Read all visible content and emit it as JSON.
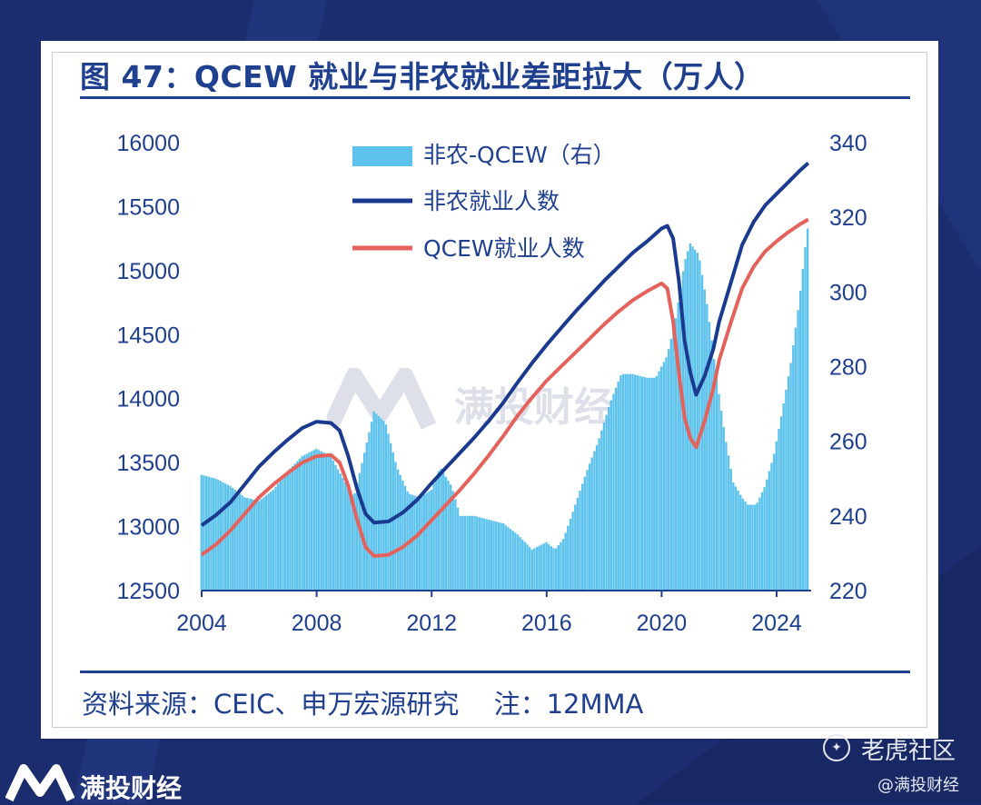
{
  "title": "图 47：QCEW 就业与非农就业差距拉大（万人）",
  "source_note": "资料来源：CEIC、申万宏源研究　 注：12MMA",
  "watermark_text": "满投财经",
  "footer": {
    "brand": "满投财经",
    "community": "老虎社区",
    "handle": "@满投财经"
  },
  "colors": {
    "bars": "#5ec3ec",
    "nonfarm_line": "#1a3a8f",
    "qcew_line": "#e4625b",
    "axis_text": "#1f3f8f",
    "background": "#1b2d6e"
  },
  "chart_data": {
    "type": "bar+line",
    "x_ticks": [
      "2004",
      "2008",
      "2012",
      "2016",
      "2020",
      "2024"
    ],
    "left_axis": {
      "ylim": [
        12500,
        16000
      ],
      "ticks": [
        12500,
        13000,
        13500,
        14000,
        14500,
        15000,
        15500,
        16000
      ]
    },
    "right_axis": {
      "ylim": [
        220,
        340
      ],
      "ticks": [
        220,
        240,
        260,
        280,
        300,
        320,
        340
      ]
    },
    "legend": [
      "非农-QCEW（右）",
      "非农就业人数",
      "QCEW就业人数"
    ],
    "legend_position": "top-left",
    "grid": false,
    "series": [
      {
        "name": "非农-QCEW（右）",
        "type": "bar",
        "axis": "right",
        "points": [
          [
            2004.0,
            251
          ],
          [
            2004.5,
            250
          ],
          [
            2005.0,
            248
          ],
          [
            2005.5,
            245
          ],
          [
            2006.0,
            244
          ],
          [
            2006.5,
            247
          ],
          [
            2007.0,
            252
          ],
          [
            2007.5,
            256
          ],
          [
            2008.0,
            258
          ],
          [
            2008.5,
            256
          ],
          [
            2009.0,
            249
          ],
          [
            2009.3,
            245
          ],
          [
            2009.7,
            258
          ],
          [
            2010.0,
            268
          ],
          [
            2010.4,
            265
          ],
          [
            2010.8,
            253
          ],
          [
            2011.2,
            246
          ],
          [
            2011.6,
            245
          ],
          [
            2012.0,
            247
          ],
          [
            2012.3,
            253
          ],
          [
            2012.7,
            248
          ],
          [
            2013.0,
            240
          ],
          [
            2013.5,
            240
          ],
          [
            2014.0,
            239
          ],
          [
            2014.5,
            238
          ],
          [
            2015.0,
            235
          ],
          [
            2015.5,
            231
          ],
          [
            2016.0,
            233
          ],
          [
            2016.3,
            231
          ],
          [
            2016.6,
            234
          ],
          [
            2017.0,
            243
          ],
          [
            2017.4,
            252
          ],
          [
            2017.8,
            260
          ],
          [
            2018.2,
            270
          ],
          [
            2018.6,
            278
          ],
          [
            2019.0,
            278
          ],
          [
            2019.5,
            277
          ],
          [
            2019.8,
            277
          ],
          [
            2020.2,
            283
          ],
          [
            2020.5,
            293
          ],
          [
            2020.8,
            308
          ],
          [
            2021.0,
            313
          ],
          [
            2021.3,
            310
          ],
          [
            2021.6,
            296
          ],
          [
            2021.9,
            278
          ],
          [
            2022.2,
            262
          ],
          [
            2022.5,
            249
          ],
          [
            2022.8,
            245
          ],
          [
            2023.0,
            243
          ],
          [
            2023.3,
            243
          ],
          [
            2023.6,
            248
          ],
          [
            2023.9,
            256
          ],
          [
            2024.2,
            268
          ],
          [
            2024.5,
            281
          ],
          [
            2024.8,
            298
          ],
          [
            2025.0,
            312
          ],
          [
            2025.1,
            318
          ]
        ]
      },
      {
        "name": "非农就业人数",
        "type": "line",
        "axis": "left",
        "points": [
          [
            2004.0,
            13010
          ],
          [
            2004.5,
            13090
          ],
          [
            2005.0,
            13190
          ],
          [
            2005.5,
            13330
          ],
          [
            2006.0,
            13470
          ],
          [
            2006.5,
            13580
          ],
          [
            2007.0,
            13680
          ],
          [
            2007.5,
            13770
          ],
          [
            2008.0,
            13820
          ],
          [
            2008.5,
            13810
          ],
          [
            2008.8,
            13750
          ],
          [
            2009.1,
            13550
          ],
          [
            2009.4,
            13300
          ],
          [
            2009.7,
            13100
          ],
          [
            2010.0,
            13030
          ],
          [
            2010.5,
            13040
          ],
          [
            2011.0,
            13110
          ],
          [
            2011.5,
            13210
          ],
          [
            2012.0,
            13340
          ],
          [
            2012.5,
            13460
          ],
          [
            2013.0,
            13580
          ],
          [
            2013.5,
            13700
          ],
          [
            2014.0,
            13830
          ],
          [
            2014.5,
            13970
          ],
          [
            2015.0,
            14130
          ],
          [
            2015.5,
            14280
          ],
          [
            2016.0,
            14420
          ],
          [
            2016.5,
            14550
          ],
          [
            2017.0,
            14680
          ],
          [
            2017.5,
            14800
          ],
          [
            2018.0,
            14920
          ],
          [
            2018.5,
            15030
          ],
          [
            2019.0,
            15140
          ],
          [
            2019.5,
            15230
          ],
          [
            2020.0,
            15330
          ],
          [
            2020.2,
            15350
          ],
          [
            2020.4,
            15250
          ],
          [
            2020.6,
            14920
          ],
          [
            2020.8,
            14450
          ],
          [
            2021.0,
            14200
          ],
          [
            2021.2,
            14030
          ],
          [
            2021.5,
            14180
          ],
          [
            2021.8,
            14390
          ],
          [
            2022.0,
            14600
          ],
          [
            2022.4,
            14900
          ],
          [
            2022.8,
            15200
          ],
          [
            2023.2,
            15380
          ],
          [
            2023.6,
            15510
          ],
          [
            2024.0,
            15600
          ],
          [
            2024.4,
            15690
          ],
          [
            2024.8,
            15780
          ],
          [
            2025.1,
            15840
          ]
        ]
      },
      {
        "name": "QCEW就业人数",
        "type": "line",
        "axis": "left",
        "points": [
          [
            2004.0,
            12780
          ],
          [
            2004.5,
            12860
          ],
          [
            2005.0,
            12970
          ],
          [
            2005.5,
            13100
          ],
          [
            2006.0,
            13230
          ],
          [
            2006.5,
            13330
          ],
          [
            2007.0,
            13420
          ],
          [
            2007.5,
            13500
          ],
          [
            2008.0,
            13550
          ],
          [
            2008.5,
            13560
          ],
          [
            2008.8,
            13500
          ],
          [
            2009.1,
            13320
          ],
          [
            2009.4,
            13060
          ],
          [
            2009.7,
            12840
          ],
          [
            2010.0,
            12770
          ],
          [
            2010.5,
            12780
          ],
          [
            2011.0,
            12840
          ],
          [
            2011.5,
            12930
          ],
          [
            2012.0,
            13050
          ],
          [
            2012.5,
            13170
          ],
          [
            2013.0,
            13290
          ],
          [
            2013.5,
            13420
          ],
          [
            2014.0,
            13560
          ],
          [
            2014.5,
            13710
          ],
          [
            2015.0,
            13870
          ],
          [
            2015.5,
            14010
          ],
          [
            2016.0,
            14140
          ],
          [
            2016.5,
            14250
          ],
          [
            2017.0,
            14360
          ],
          [
            2017.5,
            14470
          ],
          [
            2018.0,
            14580
          ],
          [
            2018.5,
            14680
          ],
          [
            2019.0,
            14770
          ],
          [
            2019.5,
            14840
          ],
          [
            2020.0,
            14900
          ],
          [
            2020.2,
            14860
          ],
          [
            2020.4,
            14600
          ],
          [
            2020.6,
            14200
          ],
          [
            2020.8,
            13850
          ],
          [
            2021.0,
            13690
          ],
          [
            2021.2,
            13620
          ],
          [
            2021.5,
            13830
          ],
          [
            2021.8,
            14080
          ],
          [
            2022.0,
            14300
          ],
          [
            2022.4,
            14590
          ],
          [
            2022.8,
            14860
          ],
          [
            2023.2,
            15030
          ],
          [
            2023.6,
            15150
          ],
          [
            2024.0,
            15230
          ],
          [
            2024.4,
            15300
          ],
          [
            2024.8,
            15360
          ],
          [
            2025.1,
            15400
          ]
        ]
      }
    ]
  }
}
